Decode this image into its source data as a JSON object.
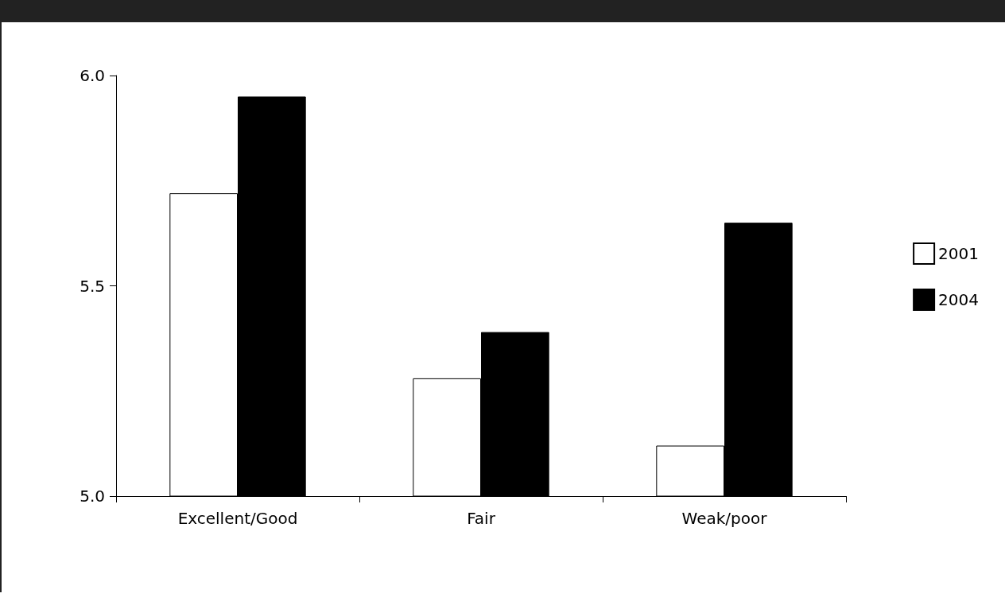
{
  "chart_data": {
    "type": "bar",
    "categories": [
      "Excellent/Good",
      "Fair",
      "Weak/poor"
    ],
    "series": [
      {
        "name": "2001",
        "color": "#ffffff",
        "values": [
          5.72,
          5.28,
          5.12
        ]
      },
      {
        "name": "2004",
        "color": "#000000",
        "values": [
          5.95,
          5.39,
          5.65
        ]
      }
    ],
    "ylim": [
      5.0,
      6.0
    ],
    "yticks": [
      {
        "value": 5.0,
        "label": "5.0"
      },
      {
        "value": 5.5,
        "label": "5.5"
      },
      {
        "value": 6.0,
        "label": "6.0"
      }
    ],
    "grid": false,
    "legend": "right"
  }
}
